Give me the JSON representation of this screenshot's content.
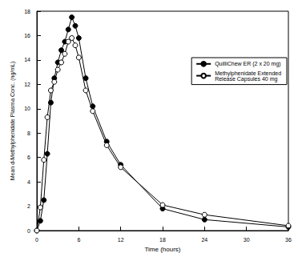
{
  "chart_data": {
    "type": "line",
    "x_label": "Time (hours)",
    "y_label": "Mean d-Methylphenidate Plasma Conc. (ng/mL)",
    "x": [
      0,
      0.5,
      1,
      1.5,
      2,
      2.5,
      3,
      3.5,
      4,
      4.5,
      5,
      5.5,
      6,
      7,
      8,
      10,
      12,
      18,
      24,
      36
    ],
    "series": [
      {
        "name": "QuilliChew ER (2 x 20 mg)",
        "color": "#000000",
        "marker": "filled_circle",
        "values": [
          0,
          0.8,
          2.5,
          6.3,
          10.5,
          12.5,
          13.8,
          14.8,
          15.5,
          16.5,
          17.5,
          16.8,
          15.8,
          12.5,
          10.2,
          7.3,
          5.4,
          1.8,
          0.9,
          0.3
        ]
      },
      {
        "name": "Methylphenidate Extended Release Capsules 40 mg",
        "color": "#000000",
        "marker": "open_circle",
        "values": [
          0,
          1.9,
          5.8,
          9.3,
          11.5,
          12.2,
          13.2,
          13.8,
          14.5,
          15.5,
          15.8,
          15.2,
          14.2,
          11.5,
          9.8,
          7.0,
          5.2,
          2.1,
          1.3,
          0.4
        ]
      }
    ],
    "xlim": [
      0,
      36
    ],
    "xticks": [
      0,
      6,
      12,
      18,
      24,
      30,
      36
    ],
    "ylim": [
      0,
      18
    ],
    "yticks": [
      0,
      2,
      4,
      6,
      8,
      10,
      12,
      14,
      16,
      18
    ],
    "grid": false,
    "legend": "right"
  }
}
